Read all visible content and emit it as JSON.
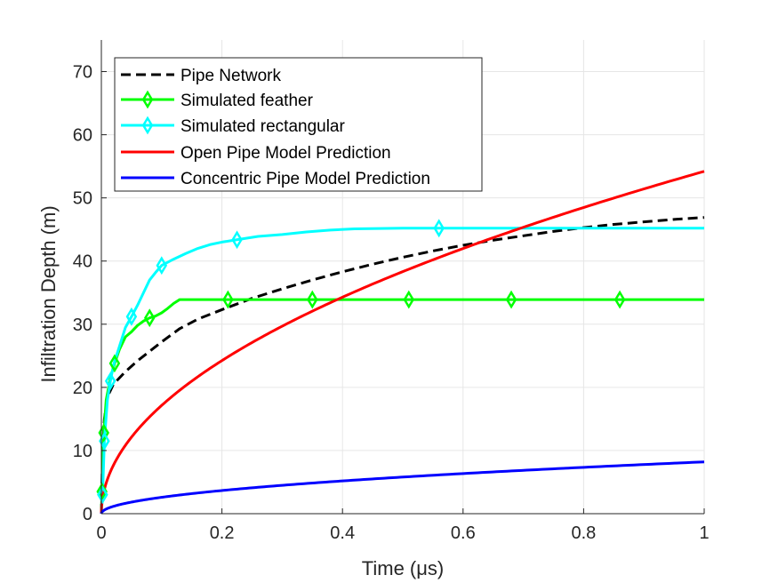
{
  "chart_data": {
    "type": "line",
    "xlabel": "Time (μs)",
    "ylabel": "Infiltration Depth (m)",
    "xlim": [
      0,
      1
    ],
    "ylim": [
      0,
      75
    ],
    "xticks": [
      0,
      0.2,
      0.4,
      0.6,
      0.8,
      1
    ],
    "xtick_labels": [
      "0",
      "0.2",
      "0.4",
      "0.6",
      "0.8",
      "1"
    ],
    "yticks": [
      0,
      10,
      20,
      30,
      40,
      50,
      60,
      70
    ],
    "ytick_labels": [
      "0",
      "10",
      "20",
      "30",
      "40",
      "50",
      "60",
      "70"
    ],
    "grid": true,
    "legend_position": "top-left",
    "series": [
      {
        "name": "Pipe Network",
        "color": "#000000",
        "style": "dashed",
        "marker": "none",
        "x": [
          0,
          0.002,
          0.005,
          0.01,
          0.02,
          0.04,
          0.06,
          0.08,
          0.1,
          0.13,
          0.16,
          0.2,
          0.25,
          0.3,
          0.35,
          0.4,
          0.45,
          0.5,
          0.55,
          0.6,
          0.65,
          0.7,
          0.75,
          0.8,
          0.85,
          0.9,
          0.95,
          1.0
        ],
        "y": [
          0,
          10,
          15,
          18.5,
          20.5,
          22.5,
          24.2,
          25.7,
          27.2,
          29.3,
          30.8,
          32.3,
          34.1,
          35.6,
          37.0,
          38.3,
          39.5,
          40.6,
          41.6,
          42.5,
          43.3,
          44.0,
          44.7,
          45.3,
          45.8,
          46.2,
          46.6,
          46.9
        ]
      },
      {
        "name": "Simulated feather",
        "color": "#00ff00",
        "style": "solid",
        "marker": "diamond",
        "x": [
          0,
          0.001,
          0.002,
          0.004,
          0.008,
          0.015,
          0.022,
          0.03,
          0.04,
          0.05,
          0.06,
          0.07,
          0.08,
          0.09,
          0.1,
          0.11,
          0.12,
          0.13,
          0.2,
          0.35,
          0.5,
          0.7,
          0.85,
          1.0
        ],
        "y": [
          0,
          3.5,
          8,
          12.8,
          18,
          21.5,
          23.8,
          26,
          28,
          28.8,
          29.8,
          30.5,
          31,
          31.3,
          31.8,
          32.5,
          33.3,
          33.9,
          33.9,
          33.9,
          33.9,
          33.9,
          33.9,
          33.9
        ],
        "marker_x": [
          0.001,
          0.004,
          0.022,
          0.08,
          0.21,
          0.35,
          0.51,
          0.68,
          0.86
        ]
      },
      {
        "name": "Simulated rectangular",
        "color": "#00ffff",
        "style": "solid",
        "marker": "diamond",
        "x": [
          0,
          0.002,
          0.005,
          0.01,
          0.015,
          0.02,
          0.03,
          0.04,
          0.05,
          0.06,
          0.07,
          0.08,
          0.09,
          0.1,
          0.12,
          0.14,
          0.16,
          0.18,
          0.2,
          0.22,
          0.24,
          0.26,
          0.3,
          0.34,
          0.38,
          0.42,
          0.5,
          0.56,
          0.7,
          0.85,
          1.0
        ],
        "y": [
          0,
          3,
          11.5,
          18,
          21,
          23.5,
          26.5,
          29.5,
          31.2,
          33,
          35,
          37,
          38.2,
          39.3,
          40.3,
          41.2,
          42.0,
          42.6,
          43.0,
          43.3,
          43.6,
          43.9,
          44.2,
          44.6,
          44.9,
          45.1,
          45.2,
          45.2,
          45.2,
          45.2,
          45.2
        ],
        "marker_x": [
          0.002,
          0.005,
          0.015,
          0.05,
          0.1,
          0.225,
          0.56
        ]
      },
      {
        "name": "Open Pipe Model Prediction",
        "color": "#ff0000",
        "style": "solid",
        "marker": "none",
        "curve": {
          "form": "power",
          "coef": 54.2,
          "exponent": 0.5
        }
      },
      {
        "name": "Concentric Pipe Model Prediction",
        "color": "#0000ff",
        "style": "solid",
        "marker": "none",
        "curve": {
          "form": "power",
          "coef": 8.2,
          "exponent": 0.5
        }
      }
    ]
  }
}
